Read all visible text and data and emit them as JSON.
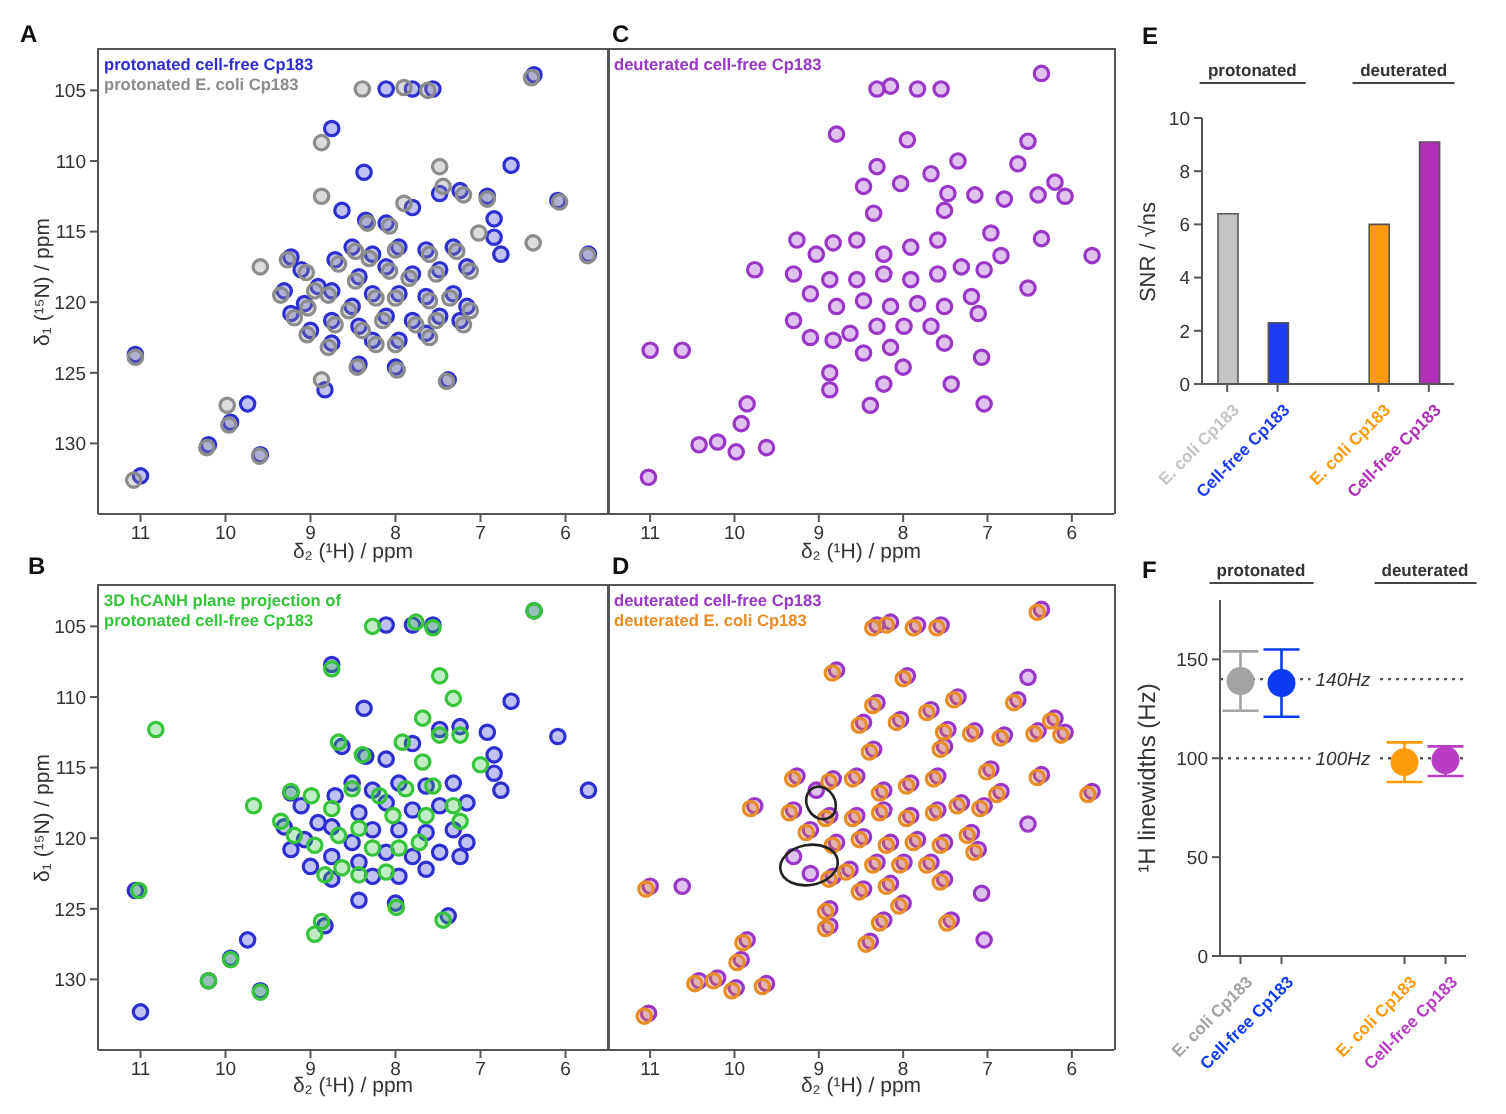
{
  "chart_data": [
    {
      "type": "scatter",
      "title": "A",
      "xlabel": "δ₂ (¹H) / ppm",
      "ylabel": "δ₁ (¹⁵N) / ppm",
      "xlim": [
        11.5,
        5.5
      ],
      "xticks": [
        11,
        10,
        9,
        8,
        7,
        6
      ],
      "ylim": [
        135,
        102
      ],
      "yticks": [
        105,
        110,
        115,
        120,
        125,
        130
      ],
      "legend": "top left",
      "marker": "circle",
      "series": [
        {
          "name": "protonated cell-free Cp183",
          "color": "#2e2ed0",
          "x": [
            11.06,
            11.0,
            10.2,
            9.74,
            9.94,
            9.59,
            8.75,
            8.11,
            7.8,
            7.56,
            6.37,
            5.73,
            6.76,
            6.84,
            6.84,
            6.92,
            6.09,
            6.64,
            7.38,
            8.83,
            8.43,
            8.0,
            8.63,
            8.35,
            8.11,
            7.8,
            7.48,
            7.24,
            8.37,
            9.23,
            9.31,
            9.11,
            8.91,
            8.71,
            8.51,
            8.27,
            7.96,
            7.64,
            7.32,
            7.16,
            7.48,
            7.8,
            8.11,
            8.43,
            8.75,
            9.07,
            9.23,
            9.0,
            8.75,
            8.51,
            8.27,
            7.96,
            7.64,
            7.32,
            7.16,
            7.48,
            7.8,
            8.11,
            8.43,
            8.27,
            7.96,
            7.64,
            8.75,
            7.24
          ],
          "values": [
            123.7,
            132.3,
            130.1,
            127.2,
            128.5,
            130.8,
            107.7,
            104.9,
            104.9,
            104.9,
            103.9,
            116.6,
            116.6,
            115.4,
            114.1,
            112.5,
            112.8,
            110.3,
            125.5,
            126.2,
            124.4,
            124.6,
            113.5,
            114.2,
            114.4,
            113.3,
            112.3,
            112.1,
            110.8,
            116.8,
            119.2,
            117.7,
            118.9,
            117.0,
            116.1,
            116.6,
            116.1,
            116.3,
            116.1,
            117.5,
            117.7,
            118.0,
            117.5,
            118.2,
            119.2,
            120.1,
            120.8,
            122.0,
            121.3,
            120.3,
            119.4,
            119.4,
            119.6,
            119.4,
            120.3,
            121.0,
            121.3,
            121.0,
            121.7,
            122.7,
            122.7,
            122.2,
            122.9,
            121.3
          ]
        },
        {
          "name": "protonated E. coli Cp183",
          "color": "#8c8c8c",
          "x": [
            11.06,
            11.08,
            10.22,
            9.98,
            9.96,
            9.6,
            8.87,
            8.39,
            7.9,
            7.62,
            6.4,
            5.74,
            7.02,
            6.92,
            6.07,
            7.4,
            8.87,
            8.45,
            7.98,
            8.87,
            8.33,
            8.07,
            7.9,
            7.48,
            7.44,
            7.2,
            6.38,
            9.59,
            9.27,
            9.35,
            9.05,
            8.95,
            8.67,
            8.47,
            8.31,
            8.0,
            7.6,
            7.28,
            7.12,
            7.52,
            7.84,
            8.07,
            8.47,
            8.79,
            9.03,
            9.19,
            9.04,
            8.71,
            8.55,
            8.23,
            8.0,
            7.6,
            7.36,
            7.12,
            7.52,
            7.76,
            8.15,
            8.39,
            8.23,
            8.0,
            7.6,
            8.79,
            7.2
          ],
          "values": [
            123.9,
            132.6,
            130.3,
            127.3,
            128.7,
            130.9,
            108.7,
            104.9,
            104.8,
            105.0,
            104.1,
            116.7,
            115.1,
            112.7,
            112.9,
            125.6,
            125.5,
            124.6,
            124.8,
            112.5,
            114.4,
            114.6,
            113.0,
            110.4,
            111.8,
            112.4,
            115.8,
            117.5,
            117.0,
            119.5,
            117.9,
            119.2,
            117.3,
            116.4,
            116.9,
            116.3,
            116.6,
            116.4,
            117.8,
            118.0,
            118.3,
            117.8,
            118.5,
            119.5,
            120.4,
            121.1,
            122.3,
            121.6,
            120.6,
            119.7,
            119.7,
            119.9,
            119.7,
            120.6,
            121.3,
            121.6,
            121.3,
            122.0,
            123.0,
            123.0,
            122.5,
            123.2,
            121.6
          ]
        }
      ]
    },
    {
      "type": "scatter",
      "title": "B",
      "xlabel": "δ₂ (¹H) / ppm",
      "ylabel": "δ₁ (¹⁵N) / ppm",
      "xlim": [
        11.5,
        5.5
      ],
      "xticks": [
        11,
        10,
        9,
        8,
        7,
        6
      ],
      "ylim": [
        135,
        102
      ],
      "yticks": [
        105,
        110,
        115,
        120,
        125,
        130
      ],
      "legend": "top left",
      "marker": "circle",
      "series": [
        {
          "color": "#2e2ed0",
          "x": [
            11.06,
            11.0,
            10.2,
            9.74,
            9.94,
            9.59,
            8.75,
            8.11,
            7.8,
            7.56,
            6.37,
            5.73,
            6.76,
            6.84,
            6.84,
            6.92,
            6.09,
            6.64,
            7.38,
            8.83,
            8.43,
            8.0,
            8.63,
            8.35,
            8.11,
            7.8,
            7.48,
            7.24,
            8.37,
            9.23,
            9.31,
            9.11,
            8.91,
            8.71,
            8.51,
            8.27,
            7.96,
            7.64,
            7.32,
            7.16,
            7.48,
            7.8,
            8.11,
            8.43,
            8.75,
            9.07,
            9.23,
            9.0,
            8.75,
            8.51,
            8.27,
            7.96,
            7.64,
            7.32,
            7.16,
            7.48,
            7.8,
            8.11,
            8.43,
            8.27,
            7.96,
            7.64,
            8.75,
            7.24
          ],
          "values": [
            123.7,
            132.3,
            130.1,
            127.2,
            128.5,
            130.8,
            107.7,
            104.9,
            104.9,
            104.9,
            103.9,
            116.6,
            116.6,
            115.4,
            114.1,
            112.5,
            112.8,
            110.3,
            125.5,
            126.2,
            124.4,
            124.6,
            113.5,
            114.2,
            114.4,
            113.3,
            112.3,
            112.1,
            110.8,
            116.8,
            119.2,
            117.7,
            118.9,
            117.0,
            116.1,
            116.6,
            116.1,
            116.3,
            116.1,
            117.5,
            117.7,
            118.0,
            117.5,
            118.2,
            119.2,
            120.1,
            120.8,
            122.0,
            121.3,
            120.3,
            119.4,
            119.4,
            119.6,
            119.4,
            120.3,
            121.0,
            121.3,
            121.0,
            121.7,
            122.7,
            122.7,
            122.2,
            122.9,
            121.3
          ]
        },
        {
          "name": "3D hCANH plane projection of protonated cell-free Cp183",
          "color": "#35c43a",
          "x": [
            11.02,
            9.59,
            8.75,
            8.27,
            7.76,
            7.56,
            6.37,
            7.32,
            7.48,
            7.68,
            7.48,
            7.24,
            8.67,
            8.39,
            7.92,
            7.68,
            7.0,
            8.95,
            8.87,
            7.99,
            7.44,
            9.94,
            10.2,
            10.82,
            9.23,
            9.35,
            9.19,
            8.95,
            8.67,
            8.83,
            8.63,
            8.27,
            8.03,
            7.96,
            7.72,
            7.64,
            7.32,
            7.56,
            7.88,
            8.19,
            8.51,
            8.75,
            8.99,
            8.43,
            8.11,
            7.24,
            8.43,
            9.67
          ],
          "values": [
            123.7,
            130.9,
            108.0,
            105.0,
            104.7,
            105.1,
            103.9,
            110.1,
            108.5,
            111.5,
            112.7,
            112.7,
            113.2,
            114.1,
            113.2,
            114.6,
            114.8,
            126.8,
            125.9,
            124.9,
            125.8,
            128.6,
            130.1,
            112.3,
            116.7,
            118.8,
            119.8,
            120.5,
            119.8,
            122.6,
            122.1,
            120.7,
            118.4,
            120.7,
            120.3,
            118.4,
            117.7,
            116.3,
            116.5,
            117.0,
            116.5,
            117.9,
            117.0,
            119.3,
            122.4,
            118.8,
            122.6,
            117.7
          ]
        }
      ]
    },
    {
      "type": "scatter",
      "title": "C",
      "xlabel": "δ₂ (¹H) / ppm",
      "xlim": [
        11.5,
        5.5
      ],
      "xticks": [
        11,
        10,
        9,
        8,
        7,
        6
      ],
      "ylim": [
        135,
        102
      ],
      "yticks": [
        105,
        110,
        115,
        120,
        125,
        130
      ],
      "tick_labels": "x",
      "legend": "top left",
      "marker": "circle",
      "series": [
        {
          "name": "deuterated cell-free Cp183",
          "color": "#9a36c6",
          "x": [
            11.02,
            11.0,
            10.62,
            10.42,
            10.2,
            9.98,
            9.62,
            9.92,
            9.85,
            9.76,
            9.3,
            9.26,
            9.3,
            9.1,
            8.87,
            8.87,
            8.39,
            8.23,
            8.0,
            7.51,
            7.43,
            7.04,
            7.07,
            8.79,
            7.95,
            8.31,
            8.15,
            7.83,
            7.55,
            6.36,
            6.52,
            6.64,
            6.2,
            6.08,
            6.4,
            6.8,
            7.15,
            5.76,
            6.36,
            6.52,
            6.84,
            6.96,
            7.51,
            7.47,
            7.35,
            7.67,
            8.31,
            8.47,
            8.03,
            8.35,
            9.03,
            8.83,
            8.55,
            8.23,
            7.91,
            7.59,
            7.31,
            7.04,
            7.59,
            7.91,
            8.23,
            8.55,
            8.87,
            9.1,
            8.79,
            8.47,
            8.15,
            7.83,
            7.51,
            7.19,
            7.11,
            7.67,
            7.99,
            8.31,
            8.63,
            8.15,
            8.47,
            8.83
          ],
          "values": [
            132.4,
            123.4,
            123.4,
            130.1,
            129.9,
            130.6,
            130.3,
            128.6,
            127.2,
            117.7,
            118.0,
            115.6,
            121.3,
            122.5,
            125.0,
            126.2,
            127.3,
            125.8,
            124.6,
            122.9,
            125.8,
            127.2,
            123.9,
            108.1,
            108.5,
            104.9,
            104.7,
            104.9,
            104.9,
            103.8,
            108.6,
            110.2,
            111.5,
            112.5,
            112.4,
            112.7,
            112.4,
            116.7,
            115.5,
            119.0,
            116.7,
            115.1,
            113.5,
            112.3,
            110.0,
            110.9,
            110.4,
            111.8,
            111.6,
            113.7,
            116.6,
            115.8,
            115.6,
            116.6,
            116.1,
            115.6,
            117.5,
            117.7,
            118.0,
            118.4,
            118.0,
            118.4,
            118.4,
            119.4,
            120.3,
            119.9,
            120.3,
            120.1,
            120.3,
            119.6,
            120.8,
            121.7,
            121.7,
            121.7,
            122.2,
            123.2,
            123.6,
            122.7
          ]
        }
      ]
    },
    {
      "type": "scatter",
      "title": "D",
      "xlabel": "δ₂ (¹H) / ppm",
      "xlim": [
        11.5,
        5.5
      ],
      "xticks": [
        11,
        10,
        9,
        8,
        7,
        6
      ],
      "ylim": [
        135,
        102
      ],
      "yticks": [
        105,
        110,
        115,
        120,
        125,
        130
      ],
      "tick_labels": "x",
      "legend": "top left",
      "marker": "circle",
      "series": [
        {
          "name": "deuterated cell-free Cp183",
          "color": "#9a36c6",
          "x": [
            11.02,
            11.0,
            10.62,
            10.42,
            10.2,
            9.98,
            9.62,
            9.92,
            9.85,
            9.76,
            9.3,
            9.26,
            9.3,
            9.1,
            8.87,
            8.87,
            8.39,
            8.23,
            8.0,
            7.51,
            7.43,
            7.04,
            7.07,
            8.79,
            7.95,
            8.31,
            8.15,
            7.83,
            7.55,
            6.36,
            6.52,
            6.64,
            6.2,
            6.08,
            6.4,
            6.8,
            7.15,
            5.76,
            6.36,
            6.52,
            6.84,
            6.96,
            7.51,
            7.47,
            7.35,
            7.67,
            8.31,
            8.47,
            8.03,
            8.35,
            9.03,
            8.83,
            8.55,
            8.23,
            7.91,
            7.59,
            7.31,
            7.04,
            7.59,
            7.91,
            8.23,
            8.55,
            8.87,
            9.1,
            8.79,
            8.47,
            8.15,
            7.83,
            7.51,
            7.19,
            7.11,
            7.67,
            7.99,
            8.31,
            8.63,
            8.15,
            8.47,
            8.83
          ],
          "values": [
            132.4,
            123.4,
            123.4,
            130.1,
            129.9,
            130.6,
            130.3,
            128.6,
            127.2,
            117.7,
            118.0,
            115.6,
            121.3,
            122.5,
            125.0,
            126.2,
            127.3,
            125.8,
            124.6,
            122.9,
            125.8,
            127.2,
            123.9,
            108.1,
            108.5,
            104.9,
            104.7,
            104.9,
            104.9,
            103.8,
            108.6,
            110.2,
            111.5,
            112.5,
            112.4,
            112.7,
            112.4,
            116.7,
            115.5,
            119.0,
            116.7,
            115.1,
            113.5,
            112.3,
            110.0,
            110.9,
            110.4,
            111.8,
            111.6,
            113.7,
            116.6,
            115.8,
            115.6,
            116.6,
            116.1,
            115.6,
            117.5,
            117.7,
            118.0,
            118.4,
            118.0,
            118.4,
            118.4,
            119.4,
            120.3,
            119.9,
            120.3,
            120.1,
            120.3,
            119.6,
            120.8,
            121.7,
            121.7,
            121.7,
            122.2,
            123.2,
            123.6,
            122.7
          ]
        },
        {
          "name": "deuterated E. coli Cp183",
          "color": "#e88c25",
          "x": [
            11.07,
            11.05,
            10.47,
            10.25,
            10.03,
            9.67,
            9.97,
            9.9,
            9.81,
            9.35,
            9.31,
            8.92,
            8.92,
            8.44,
            8.28,
            8.05,
            7.56,
            7.48,
            8.84,
            8.0,
            8.36,
            8.2,
            7.88,
            7.6,
            6.41,
            6.69,
            6.25,
            6.13,
            6.45,
            6.85,
            7.2,
            5.81,
            6.41,
            6.89,
            7.01,
            7.56,
            7.52,
            7.4,
            7.72,
            8.36,
            8.52,
            8.08,
            8.4,
            8.88,
            8.6,
            8.28,
            7.96,
            7.64,
            7.36,
            7.09,
            7.64,
            7.96,
            8.28,
            8.6,
            8.92,
            9.15,
            8.84,
            8.52,
            8.2,
            7.88,
            7.56,
            7.24,
            7.16,
            7.72,
            8.04,
            8.36,
            8.68,
            8.2,
            8.52,
            8.88
          ],
          "values": [
            132.6,
            123.6,
            130.3,
            130.1,
            130.8,
            130.5,
            128.8,
            127.4,
            117.9,
            118.2,
            115.8,
            125.2,
            126.4,
            127.5,
            126.0,
            124.8,
            123.1,
            126.0,
            108.3,
            108.7,
            105.1,
            104.9,
            105.1,
            105.1,
            104.0,
            110.4,
            111.7,
            112.7,
            112.6,
            112.9,
            112.6,
            116.9,
            115.7,
            116.9,
            115.3,
            113.7,
            112.5,
            110.2,
            111.1,
            110.6,
            112.0,
            111.8,
            113.9,
            116.0,
            115.8,
            116.8,
            116.3,
            115.8,
            117.7,
            117.9,
            118.2,
            118.6,
            118.2,
            118.6,
            118.6,
            119.6,
            120.5,
            120.1,
            120.5,
            120.3,
            120.5,
            119.8,
            121.0,
            121.9,
            121.9,
            121.9,
            122.4,
            123.4,
            123.8,
            122.9
          ]
        }
      ]
    },
    {
      "type": "bar",
      "title": "E",
      "ylabel": "SNR / √ns",
      "categories": [
        "E. coli Cp183",
        "Cell-free Cp183",
        null,
        "E. coli Cp183",
        "Cell-free Cp183"
      ],
      "values": [
        6.4,
        2.3,
        null,
        6.0,
        9.1
      ],
      "colors": [
        "#c4c4c4",
        "#1e3cf2",
        null,
        "#ff9a0a",
        "#b02fb6"
      ],
      "ylim": [
        0,
        10
      ],
      "yticks": [
        0,
        2,
        4,
        6,
        8,
        10
      ],
      "annotations": [
        "protonated",
        "deuterated"
      ]
    },
    {
      "type": "scatter",
      "title": "F",
      "ylabel": "¹H linewidths (Hz)",
      "categories": [
        "E. coli Cp183",
        "Cell-free Cp183",
        null,
        null,
        "E. coli Cp183",
        "Cell-free Cp183"
      ],
      "values": [
        139,
        138,
        null,
        null,
        98,
        99
      ],
      "errors": [
        [
          124,
          154
        ],
        [
          121,
          155
        ],
        null,
        null,
        [
          88,
          108
        ],
        [
          91,
          106
        ]
      ],
      "colors": [
        "#a3a3a3",
        "#0b3cf2",
        null,
        null,
        "#ff9a0a",
        "#b83cc4"
      ],
      "marker": "circle",
      "ylim": [
        0,
        180
      ],
      "yticks": [
        0,
        50,
        100,
        150
      ],
      "ref_lines": [
        {
          "axis": "y",
          "value": 140,
          "label": "140Hz",
          "color": "#555555",
          "line_style": "dotted"
        },
        {
          "axis": "y",
          "value": 100,
          "label": "100Hz",
          "color": "#555555",
          "line_style": "dotted"
        }
      ],
      "annotations": [
        "protonated",
        "deuterated"
      ]
    }
  ]
}
